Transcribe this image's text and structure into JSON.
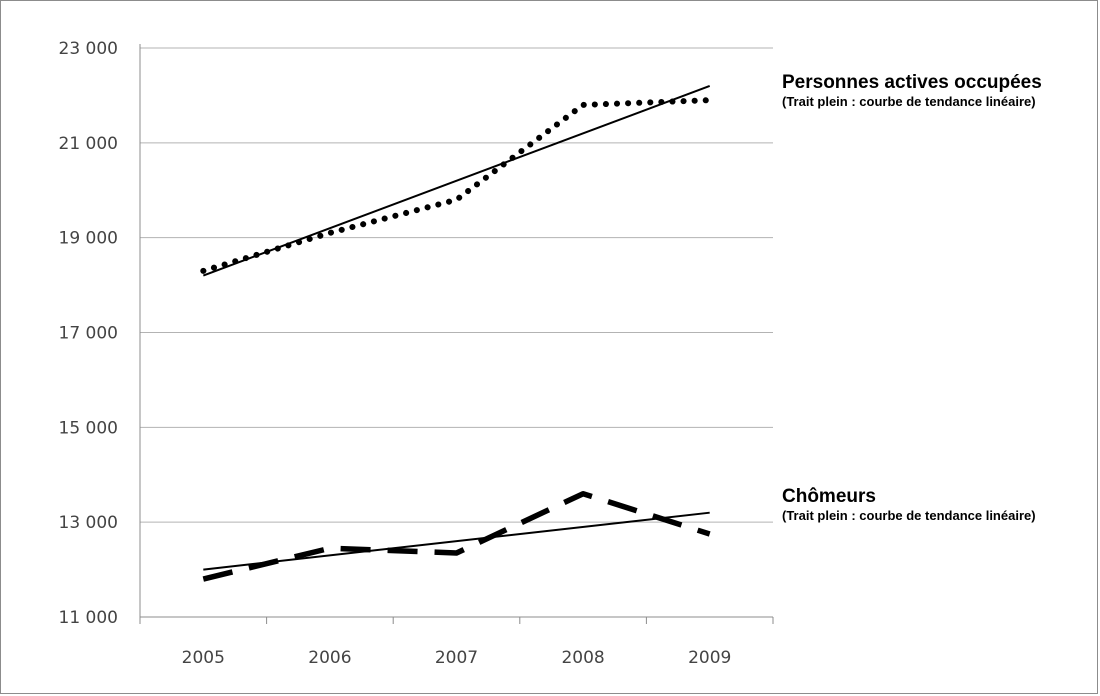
{
  "chart_data": {
    "type": "line",
    "title": "",
    "xlabel": "",
    "ylabel": "",
    "categories": [
      "2005",
      "2006",
      "2007",
      "2008",
      "2009"
    ],
    "ylim": [
      11000,
      23000
    ],
    "yticks": [
      11000,
      13000,
      15000,
      17000,
      19000,
      21000,
      23000
    ],
    "ytick_labels": [
      "11 000",
      "13 000",
      "15 000",
      "17 000",
      "19 000",
      "21 000",
      "23 000"
    ],
    "grid": true,
    "legend": "none",
    "series": [
      {
        "name": "Personnes actives occupées",
        "note": "(Trait plein : courbe de tendance linéaire)",
        "style": "dotted",
        "values": [
          18300,
          19100,
          19800,
          21800,
          21900
        ],
        "trend": [
          18200,
          22200
        ]
      },
      {
        "name": "Chômeurs",
        "note": "(Trait plein : courbe de tendance linéaire)",
        "style": "dashed",
        "values": [
          11800,
          12450,
          12350,
          13600,
          12750
        ],
        "trend": [
          12000,
          13200
        ]
      }
    ]
  }
}
